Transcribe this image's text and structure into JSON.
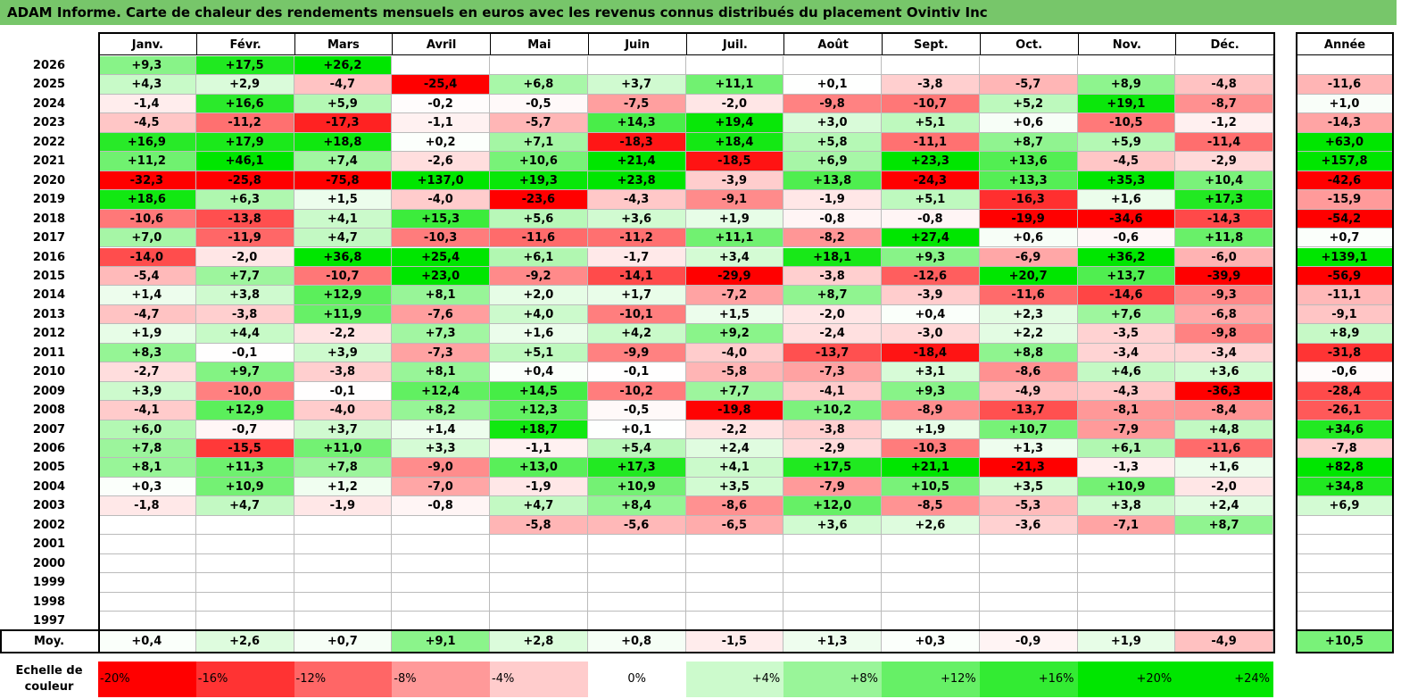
{
  "title": "ADAM Informe. Carte de chaleur des rendements mensuels en euros avec les revenus connus distribués du placement Ovintiv Inc",
  "chart_data": {
    "type": "heatmap",
    "title": "ADAM Informe. Carte de chaleur des rendements mensuels en euros avec les revenus connus distribués du placement Ovintiv Inc",
    "columns": [
      "Janv.",
      "Févr.",
      "Mars",
      "Avril",
      "Mai",
      "Juin",
      "Juil.",
      "Août",
      "Sept.",
      "Oct.",
      "Nov.",
      "Déc."
    ],
    "year_column_label": "Année",
    "rows": [
      {
        "year": "2026",
        "values": [
          "+9,3",
          "+17,5",
          "+26,2",
          "",
          "",
          "",
          "",
          "",
          "",
          "",
          "",
          ""
        ],
        "annual": ""
      },
      {
        "year": "2025",
        "values": [
          "+4,3",
          "+2,9",
          "-4,7",
          "-25,4",
          "+6,8",
          "+3,7",
          "+11,1",
          "+0,1",
          "-3,8",
          "-5,7",
          "+8,9",
          "-4,8"
        ],
        "annual": "-11,6"
      },
      {
        "year": "2024",
        "values": [
          "-1,4",
          "+16,6",
          "+5,9",
          "-0,2",
          "-0,5",
          "-7,5",
          "-2,0",
          "-9,8",
          "-10,7",
          "+5,2",
          "+19,1",
          "-8,7"
        ],
        "annual": "+1,0"
      },
      {
        "year": "2023",
        "values": [
          "-4,5",
          "-11,2",
          "-17,3",
          "-1,1",
          "-5,7",
          "+14,3",
          "+19,4",
          "+3,0",
          "+5,1",
          "+0,6",
          "-10,5",
          "-1,2"
        ],
        "annual": "-14,3"
      },
      {
        "year": "2022",
        "values": [
          "+16,9",
          "+17,9",
          "+18,8",
          "+0,2",
          "+7,1",
          "-18,3",
          "+18,4",
          "+5,8",
          "-11,1",
          "+8,7",
          "+5,9",
          "-11,4"
        ],
        "annual": "+63,0"
      },
      {
        "year": "2021",
        "values": [
          "+11,2",
          "+46,1",
          "+7,4",
          "-2,6",
          "+10,6",
          "+21,4",
          "-18,5",
          "+6,9",
          "+23,3",
          "+13,6",
          "-4,5",
          "-2,9"
        ],
        "annual": "+157,8"
      },
      {
        "year": "2020",
        "values": [
          "-32,3",
          "-25,8",
          "-75,8",
          "+137,0",
          "+19,3",
          "+23,8",
          "-3,9",
          "+13,8",
          "-24,3",
          "+13,3",
          "+35,3",
          "+10,4"
        ],
        "annual": "-42,6"
      },
      {
        "year": "2019",
        "values": [
          "+18,6",
          "+6,3",
          "+1,5",
          "-4,0",
          "-23,6",
          "-4,3",
          "-9,1",
          "-1,9",
          "+5,1",
          "-16,3",
          "+1,6",
          "+17,3"
        ],
        "annual": "-15,9"
      },
      {
        "year": "2018",
        "values": [
          "-10,6",
          "-13,8",
          "+4,1",
          "+15,3",
          "+5,6",
          "+3,6",
          "+1,9",
          "-0,8",
          "-0,8",
          "-19,9",
          "-34,6",
          "-14,3"
        ],
        "annual": "-54,2"
      },
      {
        "year": "2017",
        "values": [
          "+7,0",
          "-11,9",
          "+4,7",
          "-10,3",
          "-11,6",
          "-11,2",
          "+11,1",
          "-8,2",
          "+27,4",
          "+0,6",
          "-0,6",
          "+11,8"
        ],
        "annual": "+0,7"
      },
      {
        "year": "2016",
        "values": [
          "-14,0",
          "-2,0",
          "+36,8",
          "+25,4",
          "+6,1",
          "-1,7",
          "+3,4",
          "+18,1",
          "+9,3",
          "-6,9",
          "+36,2",
          "-6,0"
        ],
        "annual": "+139,1"
      },
      {
        "year": "2015",
        "values": [
          "-5,4",
          "+7,7",
          "-10,7",
          "+23,0",
          "-9,2",
          "-14,1",
          "-29,9",
          "-3,8",
          "-12,6",
          "+20,7",
          "+13,7",
          "-39,9"
        ],
        "annual": "-56,9"
      },
      {
        "year": "2014",
        "values": [
          "+1,4",
          "+3,8",
          "+12,9",
          "+8,1",
          "+2,0",
          "+1,7",
          "-7,2",
          "+8,7",
          "-3,9",
          "-11,6",
          "-14,6",
          "-9,3"
        ],
        "annual": "-11,1"
      },
      {
        "year": "2013",
        "values": [
          "-4,7",
          "-3,8",
          "+11,9",
          "-7,6",
          "+4,0",
          "-10,1",
          "+1,5",
          "-2,0",
          "+0,4",
          "+2,3",
          "+7,6",
          "-6,8"
        ],
        "annual": "-9,1"
      },
      {
        "year": "2012",
        "values": [
          "+1,9",
          "+4,4",
          "-2,2",
          "+7,3",
          "+1,6",
          "+4,2",
          "+9,2",
          "-2,4",
          "-3,0",
          "+2,2",
          "-3,5",
          "-9,8"
        ],
        "annual": "+8,9"
      },
      {
        "year": "2011",
        "values": [
          "+8,3",
          "-0,1",
          "+3,9",
          "-7,3",
          "+5,1",
          "-9,9",
          "-4,0",
          "-13,7",
          "-18,4",
          "+8,8",
          "-3,4",
          "-3,4"
        ],
        "annual": "-31,8"
      },
      {
        "year": "2010",
        "values": [
          "-2,7",
          "+9,7",
          "-3,8",
          "+8,1",
          "+0,4",
          "-0,1",
          "-5,8",
          "-7,3",
          "+3,1",
          "-8,6",
          "+4,6",
          "+3,6"
        ],
        "annual": "-0,6"
      },
      {
        "year": "2009",
        "values": [
          "+3,9",
          "-10,0",
          "-0,1",
          "+12,4",
          "+14,5",
          "-10,2",
          "+7,7",
          "-4,1",
          "+9,3",
          "-4,9",
          "-4,3",
          "-36,3"
        ],
        "annual": "-28,4"
      },
      {
        "year": "2008",
        "values": [
          "-4,1",
          "+12,9",
          "-4,0",
          "+8,2",
          "+12,3",
          "-0,5",
          "-19,8",
          "+10,2",
          "-8,9",
          "-13,7",
          "-8,1",
          "-8,4"
        ],
        "annual": "-26,1"
      },
      {
        "year": "2007",
        "values": [
          "+6,0",
          "-0,7",
          "+3,7",
          "+1,4",
          "+18,7",
          "+0,1",
          "-2,2",
          "-3,8",
          "+1,9",
          "+10,7",
          "-7,9",
          "+4,8"
        ],
        "annual": "+34,6"
      },
      {
        "year": "2006",
        "values": [
          "+7,8",
          "-15,5",
          "+11,0",
          "+3,3",
          "-1,1",
          "+5,4",
          "+2,4",
          "-2,9",
          "-10,3",
          "+1,3",
          "+6,1",
          "-11,6"
        ],
        "annual": "-7,8"
      },
      {
        "year": "2005",
        "values": [
          "+8,1",
          "+11,3",
          "+7,8",
          "-9,0",
          "+13,0",
          "+17,3",
          "+4,1",
          "+17,5",
          "+21,1",
          "-21,3",
          "-1,3",
          "+1,6"
        ],
        "annual": "+82,8"
      },
      {
        "year": "2004",
        "values": [
          "+0,3",
          "+10,9",
          "+1,2",
          "-7,0",
          "-1,9",
          "+10,9",
          "+3,5",
          "-7,9",
          "+10,5",
          "+3,5",
          "+10,9",
          "-2,0"
        ],
        "annual": "+34,8"
      },
      {
        "year": "2003",
        "values": [
          "-1,8",
          "+4,7",
          "-1,9",
          "-0,8",
          "+4,7",
          "+8,4",
          "-8,6",
          "+12,0",
          "-8,5",
          "-5,3",
          "+3,8",
          "+2,4"
        ],
        "annual": "+6,9"
      },
      {
        "year": "2002",
        "values": [
          "",
          "",
          "",
          "",
          "-5,8",
          "-5,6",
          "-6,5",
          "+3,6",
          "+2,6",
          "-3,6",
          "-7,1",
          "+8,7"
        ],
        "annual": ""
      },
      {
        "year": "2001",
        "values": [
          "",
          "",
          "",
          "",
          "",
          "",
          "",
          "",
          "",
          "",
          "",
          ""
        ],
        "annual": ""
      },
      {
        "year": "2000",
        "values": [
          "",
          "",
          "",
          "",
          "",
          "",
          "",
          "",
          "",
          "",
          "",
          ""
        ],
        "annual": ""
      },
      {
        "year": "1999",
        "values": [
          "",
          "",
          "",
          "",
          "",
          "",
          "",
          "",
          "",
          "",
          "",
          ""
        ],
        "annual": ""
      },
      {
        "year": "1998",
        "values": [
          "",
          "",
          "",
          "",
          "",
          "",
          "",
          "",
          "",
          "",
          "",
          ""
        ],
        "annual": ""
      },
      {
        "year": "1997",
        "values": [
          "",
          "",
          "",
          "",
          "",
          "",
          "",
          "",
          "",
          "",
          "",
          ""
        ],
        "annual": ""
      }
    ],
    "average": {
      "label": "Moy.",
      "values": [
        "+0,4",
        "+2,6",
        "+0,7",
        "+9,1",
        "+2,8",
        "+0,8",
        "-1,5",
        "+1,3",
        "+0,3",
        "-0,9",
        "+1,9",
        "-4,9"
      ],
      "annual": "+10,5"
    },
    "scale": {
      "label": "Echelle de couleur",
      "steps": [
        {
          "text": "-20%",
          "value": -20
        },
        {
          "text": "-16%",
          "value": -16
        },
        {
          "text": "-12%",
          "value": -12
        },
        {
          "text": "-8%",
          "value": -8
        },
        {
          "text": "-4%",
          "value": -4
        },
        {
          "text": "0%",
          "value": 0
        },
        {
          "text": "+4%",
          "value": 4
        },
        {
          "text": "+8%",
          "value": 8
        },
        {
          "text": "+12%",
          "value": 12
        },
        {
          "text": "+16%",
          "value": 16
        },
        {
          "text": "+20%",
          "value": 20
        },
        {
          "text": "+24%",
          "value": 24
        }
      ]
    },
    "colors": {
      "negative": "#ff0000",
      "neutral": "#ffffff",
      "positive": "#00e600",
      "title_bg": "#77c66a"
    }
  }
}
